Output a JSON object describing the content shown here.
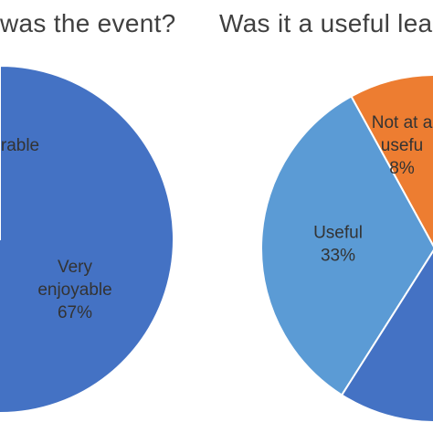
{
  "chart_data": [
    {
      "type": "pie",
      "title": "was the event?",
      "slices": [
        {
          "label_lines": [
            "rable"
          ],
          "value": null,
          "color": "#4472C4"
        },
        {
          "label_lines": [
            "Very",
            "enjoyable",
            "67%"
          ],
          "value": 67,
          "color": "#4472C4"
        }
      ]
    },
    {
      "type": "pie",
      "title": "Was it a useful lea",
      "slices": [
        {
          "label_lines": [
            "Not at a",
            "usefu",
            "8%"
          ],
          "value": 8,
          "color": "#ED7D31"
        },
        {
          "label_lines": [
            "Useful",
            "33%"
          ],
          "value": 33,
          "color": "#5B9BD5"
        },
        {
          "label_lines": [],
          "value": null,
          "color": "#4472C4"
        }
      ]
    }
  ]
}
